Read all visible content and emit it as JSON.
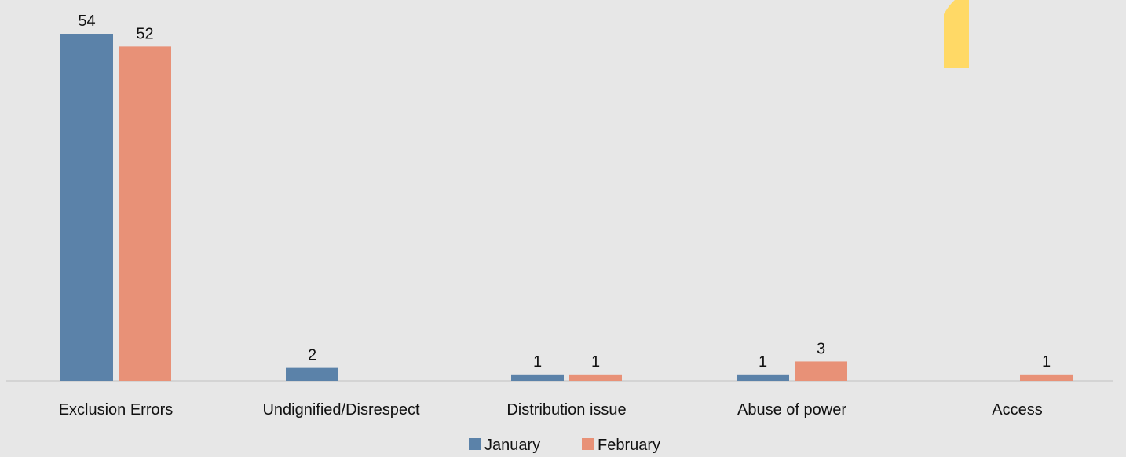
{
  "chart_data": {
    "type": "bar",
    "categories": [
      "Exclusion Errors",
      "Undignified/Disrespect",
      "Distribution issue",
      "Abuse of power",
      "Access"
    ],
    "series": [
      {
        "name": "January",
        "values": [
          54,
          2,
          1,
          1,
          null
        ],
        "color": "#5b82a9"
      },
      {
        "name": "February",
        "values": [
          52,
          null,
          1,
          3,
          1
        ],
        "color": "#e89177"
      }
    ],
    "title": "",
    "xlabel": "",
    "ylabel": "",
    "ylim": [
      0,
      54
    ],
    "grid": false,
    "legend_position": "bottom",
    "show_data_labels": true,
    "background_color": "#e7e7e7",
    "axis_color": "#c8c8c8",
    "decoration_color": "#ffd966"
  }
}
